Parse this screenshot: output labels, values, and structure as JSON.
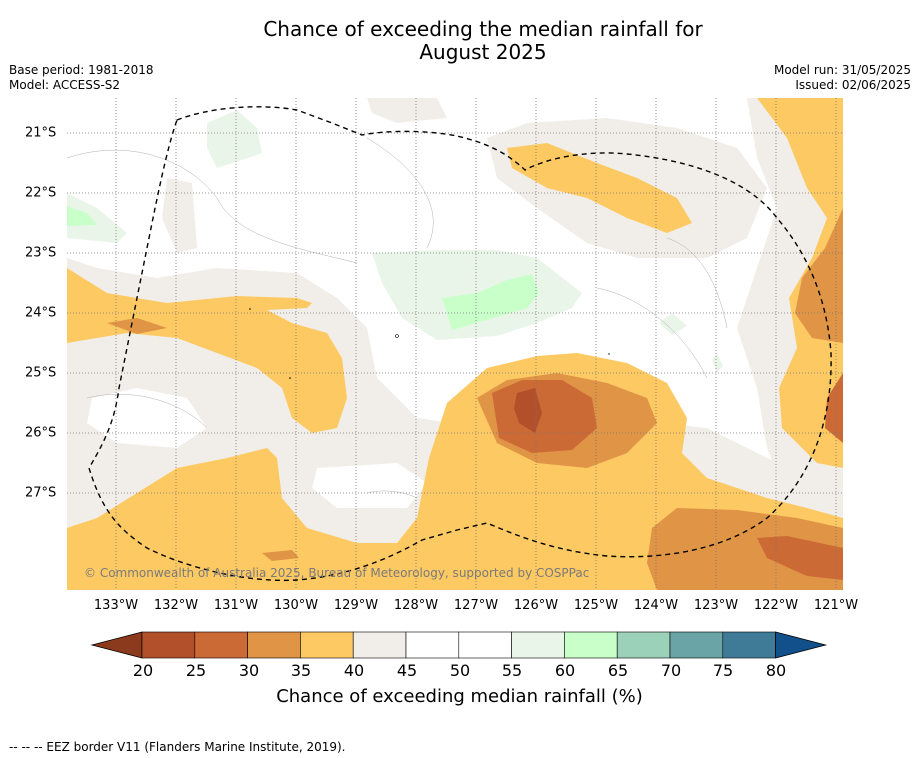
{
  "title": {
    "line1": "Chance of exceeding the median rainfall for",
    "line2": "August 2025"
  },
  "meta_left": {
    "base_period": "Base period: 1981-2018",
    "model": "Model: ACCESS-S2"
  },
  "meta_right": {
    "model_run": "Model run: 31/05/2025",
    "issued": "Issued: 02/06/2025"
  },
  "map": {
    "latitude_labels": [
      "21°S",
      "22°S",
      "23°S",
      "24°S",
      "25°S",
      "26°S",
      "27°S"
    ],
    "longitude_labels": [
      "133°W",
      "132°W",
      "131°W",
      "130°W",
      "129°W",
      "128°W",
      "127°W",
      "126°W",
      "125°W",
      "124°W",
      "123°W",
      "122°W",
      "121°W"
    ],
    "copyright": "© Commonwealth of Australia 2025, Bureau of Meteorology, supported by COSPPac"
  },
  "colorbar": {
    "ticks": [
      "20",
      "25",
      "30",
      "35",
      "40",
      "45",
      "50",
      "55",
      "60",
      "65",
      "70",
      "75",
      "80"
    ],
    "colors": [
      "#8c3a1e",
      "#b1502a",
      "#cc6a35",
      "#e09446",
      "#fdc963",
      "#f1eee9",
      "#ffffff",
      "#ffffff",
      "#eaf5ea",
      "#c9ffc9",
      "#9bd1b9",
      "#6aa4a6",
      "#3f7b96",
      "#11508a"
    ],
    "label": "Chance of exceeding median rainfall (%)"
  },
  "legend_text": "-- -- -- EEZ border V11 (Flanders Marine Institute, 2019)."
}
